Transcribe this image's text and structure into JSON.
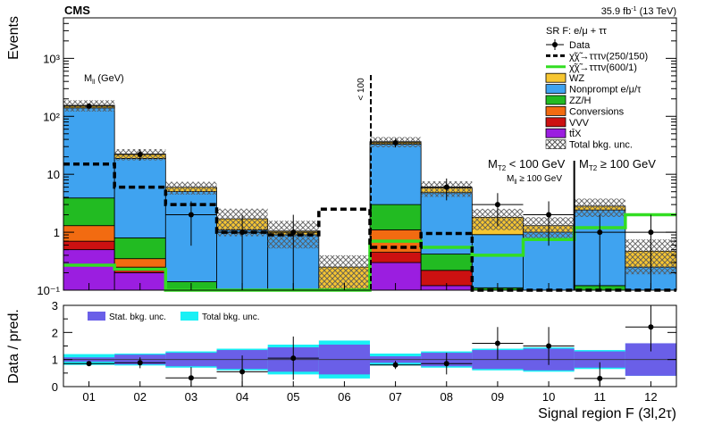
{
  "chart_data": {
    "type": "bar",
    "experiment": "CMS",
    "lumi_label": "35.9 fb",
    "lumi_sup": "-1",
    "lumi_energy": "(13 TeV)",
    "xlabel": "Signal region F (3l,2τ)",
    "ylabel_top": "Events",
    "ylabel_bottom": "Data / pred.",
    "categories": [
      "01",
      "02",
      "03",
      "04",
      "05",
      "06",
      "07",
      "08",
      "09",
      "10",
      "11",
      "12"
    ],
    "top_yscale": "log",
    "top_ylim": [
      0.1,
      5000
    ],
    "top_yticks": [
      "10⁻¹",
      "1",
      "10",
      "10²",
      "10³"
    ],
    "ratio_ylim": [
      0,
      3
    ],
    "ratio_yticks": [
      "0",
      "1",
      "2",
      "3"
    ],
    "annotations": {
      "mll": "M",
      "mll_sub": "ll",
      "mll_unit": " (GeV)",
      "lt100_rot": "< 100",
      "mt2_low": "M",
      "mt2_low_sub": "T2",
      "mt2_low_rest": " < 100 GeV",
      "mt2_high": "M",
      "mt2_high_sub": "T2",
      "mt2_high_rest": " ≥ 100 GeV",
      "mll_ge": "M",
      "mll_ge_sub": "ll",
      "mll_ge_rest": " ≥ 100 GeV"
    },
    "legend": {
      "title": "SR F: e/μ + ττ",
      "entries": [
        {
          "key": "data",
          "label": "Data",
          "style": "marker"
        },
        {
          "key": "sig1",
          "label": "χ̃χ̃→τττν(250/150)",
          "style": "dashed",
          "color": "#000000"
        },
        {
          "key": "sig2",
          "label": "χ̃χ̃→τττν(600/1)",
          "style": "line",
          "color": "#33dd22"
        },
        {
          "key": "wz",
          "label": "WZ",
          "style": "fill",
          "color": "#f7c631"
        },
        {
          "key": "np",
          "label": "Nonprompt e/μ/τ",
          "style": "fill",
          "color": "#3fa3f0"
        },
        {
          "key": "zz",
          "label": "ZZ/H",
          "style": "fill",
          "color": "#22bb22"
        },
        {
          "key": "conv",
          "label": "Conversions",
          "style": "fill",
          "color": "#f26b11"
        },
        {
          "key": "vvv",
          "label": "VVV",
          "style": "fill",
          "color": "#cc1111"
        },
        {
          "key": "ttx",
          "label": "tt̄X",
          "style": "fill",
          "color": "#9b1ee0"
        },
        {
          "key": "unc",
          "label": "Total bkg. unc.",
          "style": "hatch",
          "color": "#777777"
        }
      ]
    },
    "stack_order": [
      "ttx",
      "vvv",
      "conv",
      "zz",
      "np",
      "wz"
    ],
    "series": [
      {
        "name": "tt̄X",
        "key": "ttx",
        "values": [
          0.5,
          0.2,
          0.1,
          0.1,
          0.1,
          0.1,
          0.3,
          0.12,
          0.1,
          0.1,
          0.1,
          0.1
        ]
      },
      {
        "name": "VVV",
        "key": "vvv",
        "values": [
          0.2,
          0.05,
          0.0,
          0.0,
          0.0,
          0.0,
          0.15,
          0.1,
          0.0,
          0.0,
          0.0,
          0.0
        ]
      },
      {
        "name": "Conversions",
        "key": "conv",
        "values": [
          0.6,
          0.1,
          0.0,
          0.0,
          0.0,
          0.0,
          0.65,
          0.0,
          0.0,
          0.0,
          0.0,
          0.0
        ]
      },
      {
        "name": "ZZ/H",
        "key": "zz",
        "values": [
          2.6,
          0.45,
          0.04,
          0.0,
          0.0,
          0.0,
          1.9,
          0.2,
          0.01,
          0.0,
          0.02,
          0.0
        ]
      },
      {
        "name": "Nonprompt e/μ/τ",
        "key": "np",
        "values": [
          136,
          18,
          4.9,
          1.0,
          0.8,
          0.0,
          30,
          4.4,
          0.8,
          0.9,
          2.3,
          0.15
        ]
      },
      {
        "name": "WZ",
        "key": "wz",
        "values": [
          15,
          3.5,
          0.9,
          0.6,
          0.15,
          0.15,
          3.5,
          1.0,
          0.9,
          0.3,
          0.4,
          0.22
        ]
      }
    ],
    "total_unc_frac": [
      0.22,
      0.22,
      0.25,
      0.5,
      0.5,
      0.6,
      0.2,
      0.3,
      0.4,
      0.4,
      0.35,
      0.6
    ],
    "data": [
      {
        "bin": "01",
        "value": 150
      },
      {
        "bin": "02",
        "value": 22
      },
      {
        "bin": "03",
        "value": 2
      },
      {
        "bin": "04",
        "value": 1
      },
      {
        "bin": "05",
        "value": 1
      },
      {
        "bin": "07",
        "value": 35
      },
      {
        "bin": "08",
        "value": 6
      },
      {
        "bin": "09",
        "value": 3
      },
      {
        "bin": "10",
        "value": 2
      },
      {
        "bin": "11",
        "value": 1
      },
      {
        "bin": "12",
        "value": 1
      }
    ],
    "signal_250_150": [
      15,
      6,
      3,
      1,
      0.9,
      2.5,
      0.55,
      0.95,
      0.1,
      0.1,
      0.1,
      0.1
    ],
    "signal_600_1": [
      0.27,
      0.23,
      0.1,
      0.1,
      0.1,
      0.1,
      0.7,
      0.55,
      0.4,
      0.75,
      1.2,
      2.0
    ],
    "ratio": {
      "legend": [
        {
          "key": "stat",
          "label": "Stat. bkg. unc.",
          "color": "#6a5fe8"
        },
        {
          "key": "total",
          "label": "Total bkg. unc.",
          "color": "#19f0f5"
        }
      ],
      "points": [
        0.85,
        0.88,
        0.32,
        0.55,
        1.05,
        null,
        0.8,
        0.85,
        1.6,
        1.5,
        0.3,
        2.2
      ],
      "point_err": [
        0.08,
        0.2,
        0.4,
        0.6,
        0.8,
        null,
        0.15,
        0.4,
        0.6,
        0.7,
        0.6,
        0.9
      ],
      "stat_unc": [
        0.08,
        0.18,
        0.25,
        0.35,
        0.45,
        0.55,
        0.12,
        0.25,
        0.35,
        0.4,
        0.3,
        0.6
      ],
      "total_unc": [
        0.2,
        0.22,
        0.3,
        0.4,
        0.55,
        0.7,
        0.22,
        0.3,
        0.4,
        0.45,
        0.35,
        0.6
      ]
    }
  }
}
